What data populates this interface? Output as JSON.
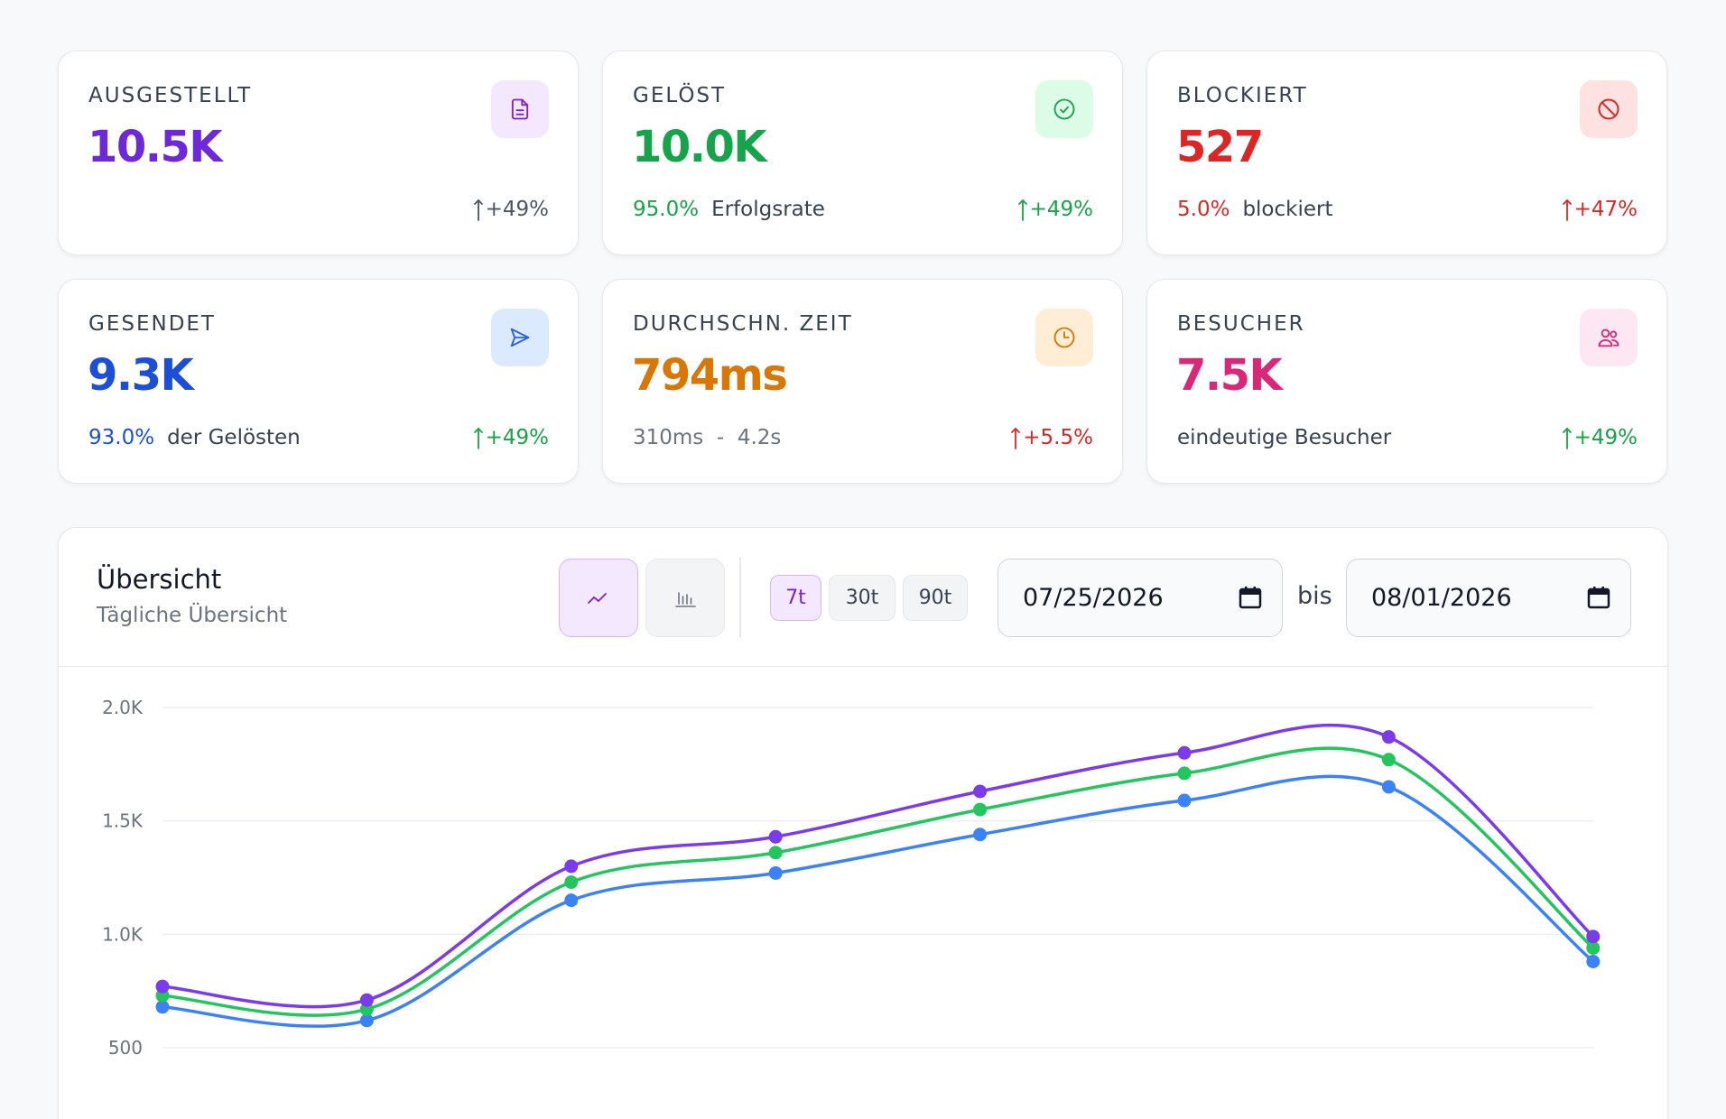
{
  "cards": [
    {
      "label": "AUSGESTELLT",
      "value": "10.5K",
      "sub_pct": "",
      "sub_text": "",
      "trend": "+49%",
      "accent": "#6d28d9",
      "trend_color": "#4b5563",
      "icon": "document-icon",
      "icon_bg": "#f3e8ff",
      "icon_color": "#7e22ce"
    },
    {
      "label": "GELÖST",
      "value": "10.0K",
      "sub_pct": "95.0%",
      "sub_text": "Erfolgsrate",
      "trend": "+49%",
      "accent": "#16a34a",
      "trend_color": "#16a34a",
      "icon": "check-circle-icon",
      "icon_bg": "#dcfce7",
      "icon_color": "#16a34a"
    },
    {
      "label": "BLOCKIERT",
      "value": "527",
      "sub_pct": "5.0%",
      "sub_text": "blockiert",
      "trend": "+47%",
      "accent": "#dc2626",
      "trend_color": "#dc2626",
      "icon": "ban-icon",
      "icon_bg": "#fee2e2",
      "icon_color": "#dc2626"
    },
    {
      "label": "GESENDET",
      "value": "9.3K",
      "sub_pct": "93.0%",
      "sub_text": "der Gelösten",
      "trend": "+49%",
      "accent": "#1d4ed8",
      "trend_color": "#16a34a",
      "icon": "send-icon",
      "icon_bg": "#dbeafe",
      "icon_color": "#2563eb"
    },
    {
      "label": "DURCHSCHN. ZEIT",
      "value": "794ms",
      "sub_pct": "",
      "sub_text": "310ms  -  4.2s",
      "trend": "+5.5%",
      "accent": "#d97706",
      "trend_color": "#dc2626",
      "icon": "clock-icon",
      "icon_bg": "#ffedd5",
      "icon_color": "#d97706"
    },
    {
      "label": "BESUCHER",
      "value": "7.5K",
      "sub_pct": "",
      "sub_text": "eindeutige Besucher",
      "trend": "+49%",
      "accent": "#db2777",
      "trend_color": "#16a34a",
      "icon": "users-icon",
      "icon_bg": "#fce7f3",
      "icon_color": "#db2777"
    }
  ],
  "panel": {
    "title": "Übersicht",
    "subtitle": "Tägliche Übersicht",
    "chart_types": [
      "line-chart-icon",
      "bar-chart-icon"
    ],
    "active_chart_type": "line",
    "ranges": [
      "7t",
      "30t",
      "90t"
    ],
    "active_range": "7t",
    "date_from": "07/25/2026",
    "date_to": "08/01/2026",
    "range_separator": "bis"
  },
  "chart_data": {
    "type": "line",
    "x": [
      1,
      2,
      3,
      4,
      5,
      6,
      7,
      8
    ],
    "yticks": [
      "2.0K",
      "1.5K",
      "1.0K",
      "500"
    ],
    "ylim": [
      500,
      2000
    ],
    "grid": true,
    "series": [
      {
        "color": "#7c3aed",
        "values": [
          770,
          710,
          1300,
          1430,
          1630,
          1800,
          1870,
          990
        ]
      },
      {
        "color": "#22c55e",
        "values": [
          730,
          670,
          1230,
          1360,
          1550,
          1710,
          1770,
          940
        ]
      },
      {
        "color": "#3b82f6",
        "values": [
          680,
          620,
          1150,
          1270,
          1440,
          1590,
          1650,
          880
        ]
      }
    ]
  }
}
